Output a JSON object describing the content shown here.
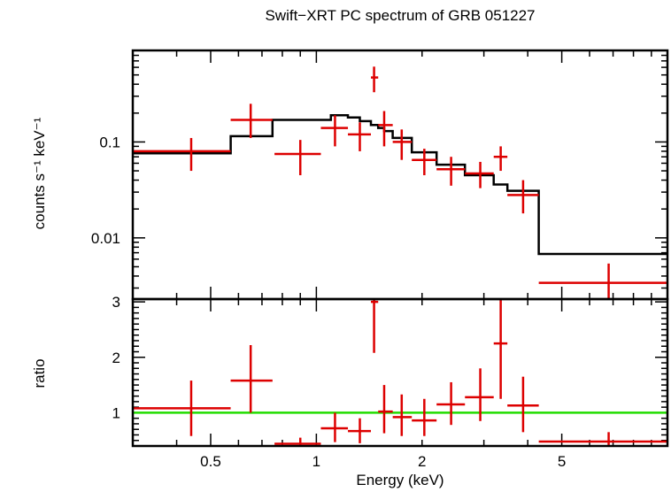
{
  "chart_data": [
    {
      "type": "scatter",
      "title": "Swift−XRT PC spectrum of GRB 051227",
      "ylabel": "counts s⁻¹ keV⁻¹",
      "xscale": "log",
      "yscale": "log",
      "xlim": [
        0.3,
        10
      ],
      "ylim": [
        0.0023,
        0.9
      ],
      "yticks": [
        {
          "value": 0.01,
          "label": "0.01"
        },
        {
          "value": 0.1,
          "label": "0.1"
        }
      ],
      "series": [
        {
          "kind": "data_with_errors",
          "color": "#dd0000",
          "points": [
            {
              "x": 0.44,
              "xlo": 0.3,
              "xhi": 0.57,
              "y": 0.08,
              "ylo": 0.05,
              "yhi": 0.11
            },
            {
              "x": 0.65,
              "xlo": 0.57,
              "xhi": 0.75,
              "y": 0.17,
              "ylo": 0.11,
              "yhi": 0.25
            },
            {
              "x": 0.9,
              "xlo": 0.76,
              "xhi": 1.03,
              "y": 0.075,
              "ylo": 0.045,
              "yhi": 0.105
            },
            {
              "x": 1.13,
              "xlo": 1.03,
              "xhi": 1.23,
              "y": 0.14,
              "ylo": 0.09,
              "yhi": 0.19
            },
            {
              "x": 1.33,
              "xlo": 1.23,
              "xhi": 1.43,
              "y": 0.12,
              "ylo": 0.08,
              "yhi": 0.16
            },
            {
              "x": 1.46,
              "xlo": 1.43,
              "xhi": 1.5,
              "y": 0.47,
              "ylo": 0.33,
              "yhi": 0.61
            },
            {
              "x": 1.56,
              "xlo": 1.5,
              "xhi": 1.65,
              "y": 0.15,
              "ylo": 0.09,
              "yhi": 0.21
            },
            {
              "x": 1.75,
              "xlo": 1.65,
              "xhi": 1.87,
              "y": 0.1,
              "ylo": 0.065,
              "yhi": 0.135
            },
            {
              "x": 2.03,
              "xlo": 1.87,
              "xhi": 2.2,
              "y": 0.065,
              "ylo": 0.045,
              "yhi": 0.085
            },
            {
              "x": 2.42,
              "xlo": 2.2,
              "xhi": 2.65,
              "y": 0.052,
              "ylo": 0.035,
              "yhi": 0.07
            },
            {
              "x": 2.93,
              "xlo": 2.65,
              "xhi": 3.2,
              "y": 0.047,
              "ylo": 0.033,
              "yhi": 0.062
            },
            {
              "x": 3.35,
              "xlo": 3.2,
              "xhi": 3.5,
              "y": 0.07,
              "ylo": 0.05,
              "yhi": 0.09
            },
            {
              "x": 3.88,
              "xlo": 3.5,
              "xhi": 4.3,
              "y": 0.028,
              "ylo": 0.018,
              "yhi": 0.04
            },
            {
              "x": 6.8,
              "xlo": 4.3,
              "xhi": 10,
              "y": 0.0034,
              "ylo": 0.0023,
              "yhi": 0.0054
            }
          ]
        },
        {
          "kind": "model_step",
          "color": "#000000",
          "edges": [
            0.3,
            0.57,
            0.75,
            1.03,
            1.1,
            1.23,
            1.33,
            1.43,
            1.5,
            1.56,
            1.65,
            1.87,
            2.2,
            2.65,
            3.2,
            3.5,
            4.3,
            10
          ],
          "values": [
            0.076,
            0.115,
            0.17,
            0.17,
            0.19,
            0.18,
            0.165,
            0.15,
            0.14,
            0.13,
            0.11,
            0.078,
            0.058,
            0.045,
            0.036,
            0.031,
            0.0068
          ]
        }
      ]
    },
    {
      "type": "scatter",
      "ylabel": "ratio",
      "xlabel": "Energy (keV)",
      "xscale": "log",
      "xlim": [
        0.3,
        10
      ],
      "ylim": [
        0.4,
        3.05
      ],
      "yticks": [
        {
          "value": 1,
          "label": "1"
        },
        {
          "value": 2,
          "label": "2"
        },
        {
          "value": 3,
          "label": "3"
        }
      ],
      "xticks": [
        {
          "value": 0.5,
          "label": "0.5"
        },
        {
          "value": 1,
          "label": "1"
        },
        {
          "value": 2,
          "label": "2"
        },
        {
          "value": 5,
          "label": "5"
        }
      ],
      "reference_line": {
        "y": 1,
        "color": "#22dd00"
      },
      "series": [
        {
          "kind": "ratio_with_errors",
          "color": "#dd0000",
          "points": [
            {
              "x": 0.44,
              "xlo": 0.3,
              "xhi": 0.57,
              "y": 1.08,
              "ylo": 0.58,
              "yhi": 1.58
            },
            {
              "x": 0.65,
              "xlo": 0.57,
              "xhi": 0.75,
              "y": 1.58,
              "ylo": 1.0,
              "yhi": 2.22
            },
            {
              "x": 0.9,
              "xlo": 0.76,
              "xhi": 1.03,
              "y": 0.44,
              "ylo": 0.4,
              "yhi": 0.55
            },
            {
              "x": 1.13,
              "xlo": 1.03,
              "xhi": 1.23,
              "y": 0.72,
              "ylo": 0.47,
              "yhi": 1.0
            },
            {
              "x": 1.33,
              "xlo": 1.23,
              "xhi": 1.43,
              "y": 0.67,
              "ylo": 0.45,
              "yhi": 0.9
            },
            {
              "x": 1.46,
              "xlo": 1.43,
              "xhi": 1.5,
              "y": 3.0,
              "ylo": 2.08,
              "yhi": 3.05
            },
            {
              "x": 1.56,
              "xlo": 1.5,
              "xhi": 1.65,
              "y": 1.02,
              "ylo": 0.63,
              "yhi": 1.5
            },
            {
              "x": 1.75,
              "xlo": 1.65,
              "xhi": 1.87,
              "y": 0.92,
              "ylo": 0.58,
              "yhi": 1.33
            },
            {
              "x": 2.03,
              "xlo": 1.87,
              "xhi": 2.2,
              "y": 0.86,
              "ylo": 0.58,
              "yhi": 1.25
            },
            {
              "x": 2.42,
              "xlo": 2.2,
              "xhi": 2.65,
              "y": 1.15,
              "ylo": 0.78,
              "yhi": 1.55
            },
            {
              "x": 2.93,
              "xlo": 2.65,
              "xhi": 3.2,
              "y": 1.28,
              "ylo": 0.85,
              "yhi": 1.8
            },
            {
              "x": 3.35,
              "xlo": 3.2,
              "xhi": 3.5,
              "y": 2.25,
              "ylo": 1.25,
              "yhi": 3.05
            },
            {
              "x": 3.88,
              "xlo": 3.5,
              "xhi": 4.3,
              "y": 1.13,
              "ylo": 0.65,
              "yhi": 1.65
            },
            {
              "x": 6.8,
              "xlo": 4.3,
              "xhi": 10,
              "y": 0.48,
              "ylo": 0.4,
              "yhi": 0.65
            }
          ]
        }
      ]
    }
  ]
}
